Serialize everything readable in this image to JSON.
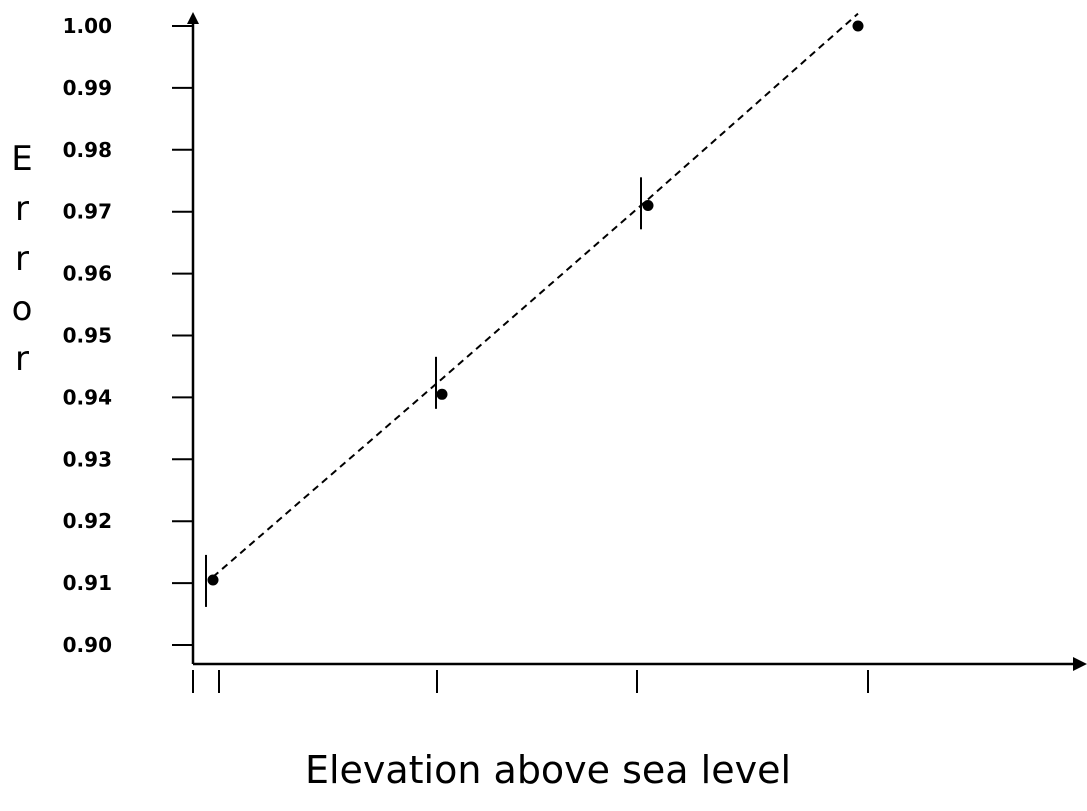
{
  "chart_data": {
    "type": "scatter",
    "title": "",
    "xlabel": "Elevation above sea level",
    "ylabel": "Error",
    "ylim": [
      0.9,
      1.0
    ],
    "y_ticks": [
      "0.90",
      "0.91",
      "0.92",
      "0.93",
      "0.94",
      "0.95",
      "0.96",
      "0.97",
      "0.98",
      "0.99",
      "1.00"
    ],
    "x_tick_labels": [],
    "grid": false,
    "legend": "none",
    "line_style": "dashed",
    "series": [
      {
        "points": [
          {
            "y": 0.9105
          },
          {
            "y": 0.9405
          },
          {
            "y": 0.971
          },
          {
            "y": 1.0
          }
        ],
        "trend": [
          0.911,
          0.943,
          0.972,
          1.002
        ]
      }
    ]
  }
}
